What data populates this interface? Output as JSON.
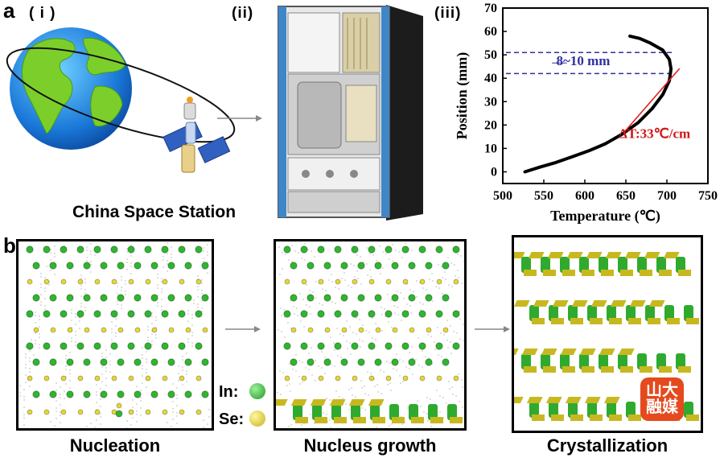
{
  "panel_a": {
    "letter": "a",
    "sub_i": "( i )",
    "sub_ii": "(ii)",
    "sub_iii": "(iii)",
    "station_caption": "China Space Station"
  },
  "panel_b": {
    "letter": "b",
    "caption_nucleation": "Nucleation",
    "caption_growth": "Nucleus growth",
    "caption_crystallization": "Crystallization",
    "legend_in": "In:",
    "legend_se": "Se:",
    "color_in": "#2fb52f",
    "color_se": "#e6d633"
  },
  "watermark": {
    "text": "山大融媒"
  },
  "chart_data": {
    "type": "line",
    "xlabel": "Temperature (℃)",
    "ylabel": "Position (mm)",
    "xlim": [
      500,
      750
    ],
    "ylim": [
      -5,
      70
    ],
    "xticks": [
      "500",
      "550",
      "600",
      "650",
      "700",
      "750"
    ],
    "yticks": [
      "0",
      "10",
      "20",
      "30",
      "40",
      "50",
      "60",
      "70"
    ],
    "series": [
      {
        "x": [
          527,
          545,
          565,
          585,
          605,
          625,
          645,
          665,
          682,
          695,
          703,
          705,
          703,
          695,
          680,
          667,
          655
        ],
        "y": [
          0,
          2,
          4,
          6.5,
          9,
          12,
          16,
          21,
          27,
          33,
          39,
          44,
          48,
          52,
          55,
          57,
          58
        ],
        "color": "#000000"
      },
      {
        "x": [
          648,
          715
        ],
        "y": [
          17,
          44
        ],
        "color": "#e02020"
      }
    ],
    "hlines": [
      51,
      42
    ],
    "hline_color": "#3030a0",
    "annotations": [
      "8~10 mm",
      "ΔT:33℃/cm"
    ],
    "grid": false
  }
}
